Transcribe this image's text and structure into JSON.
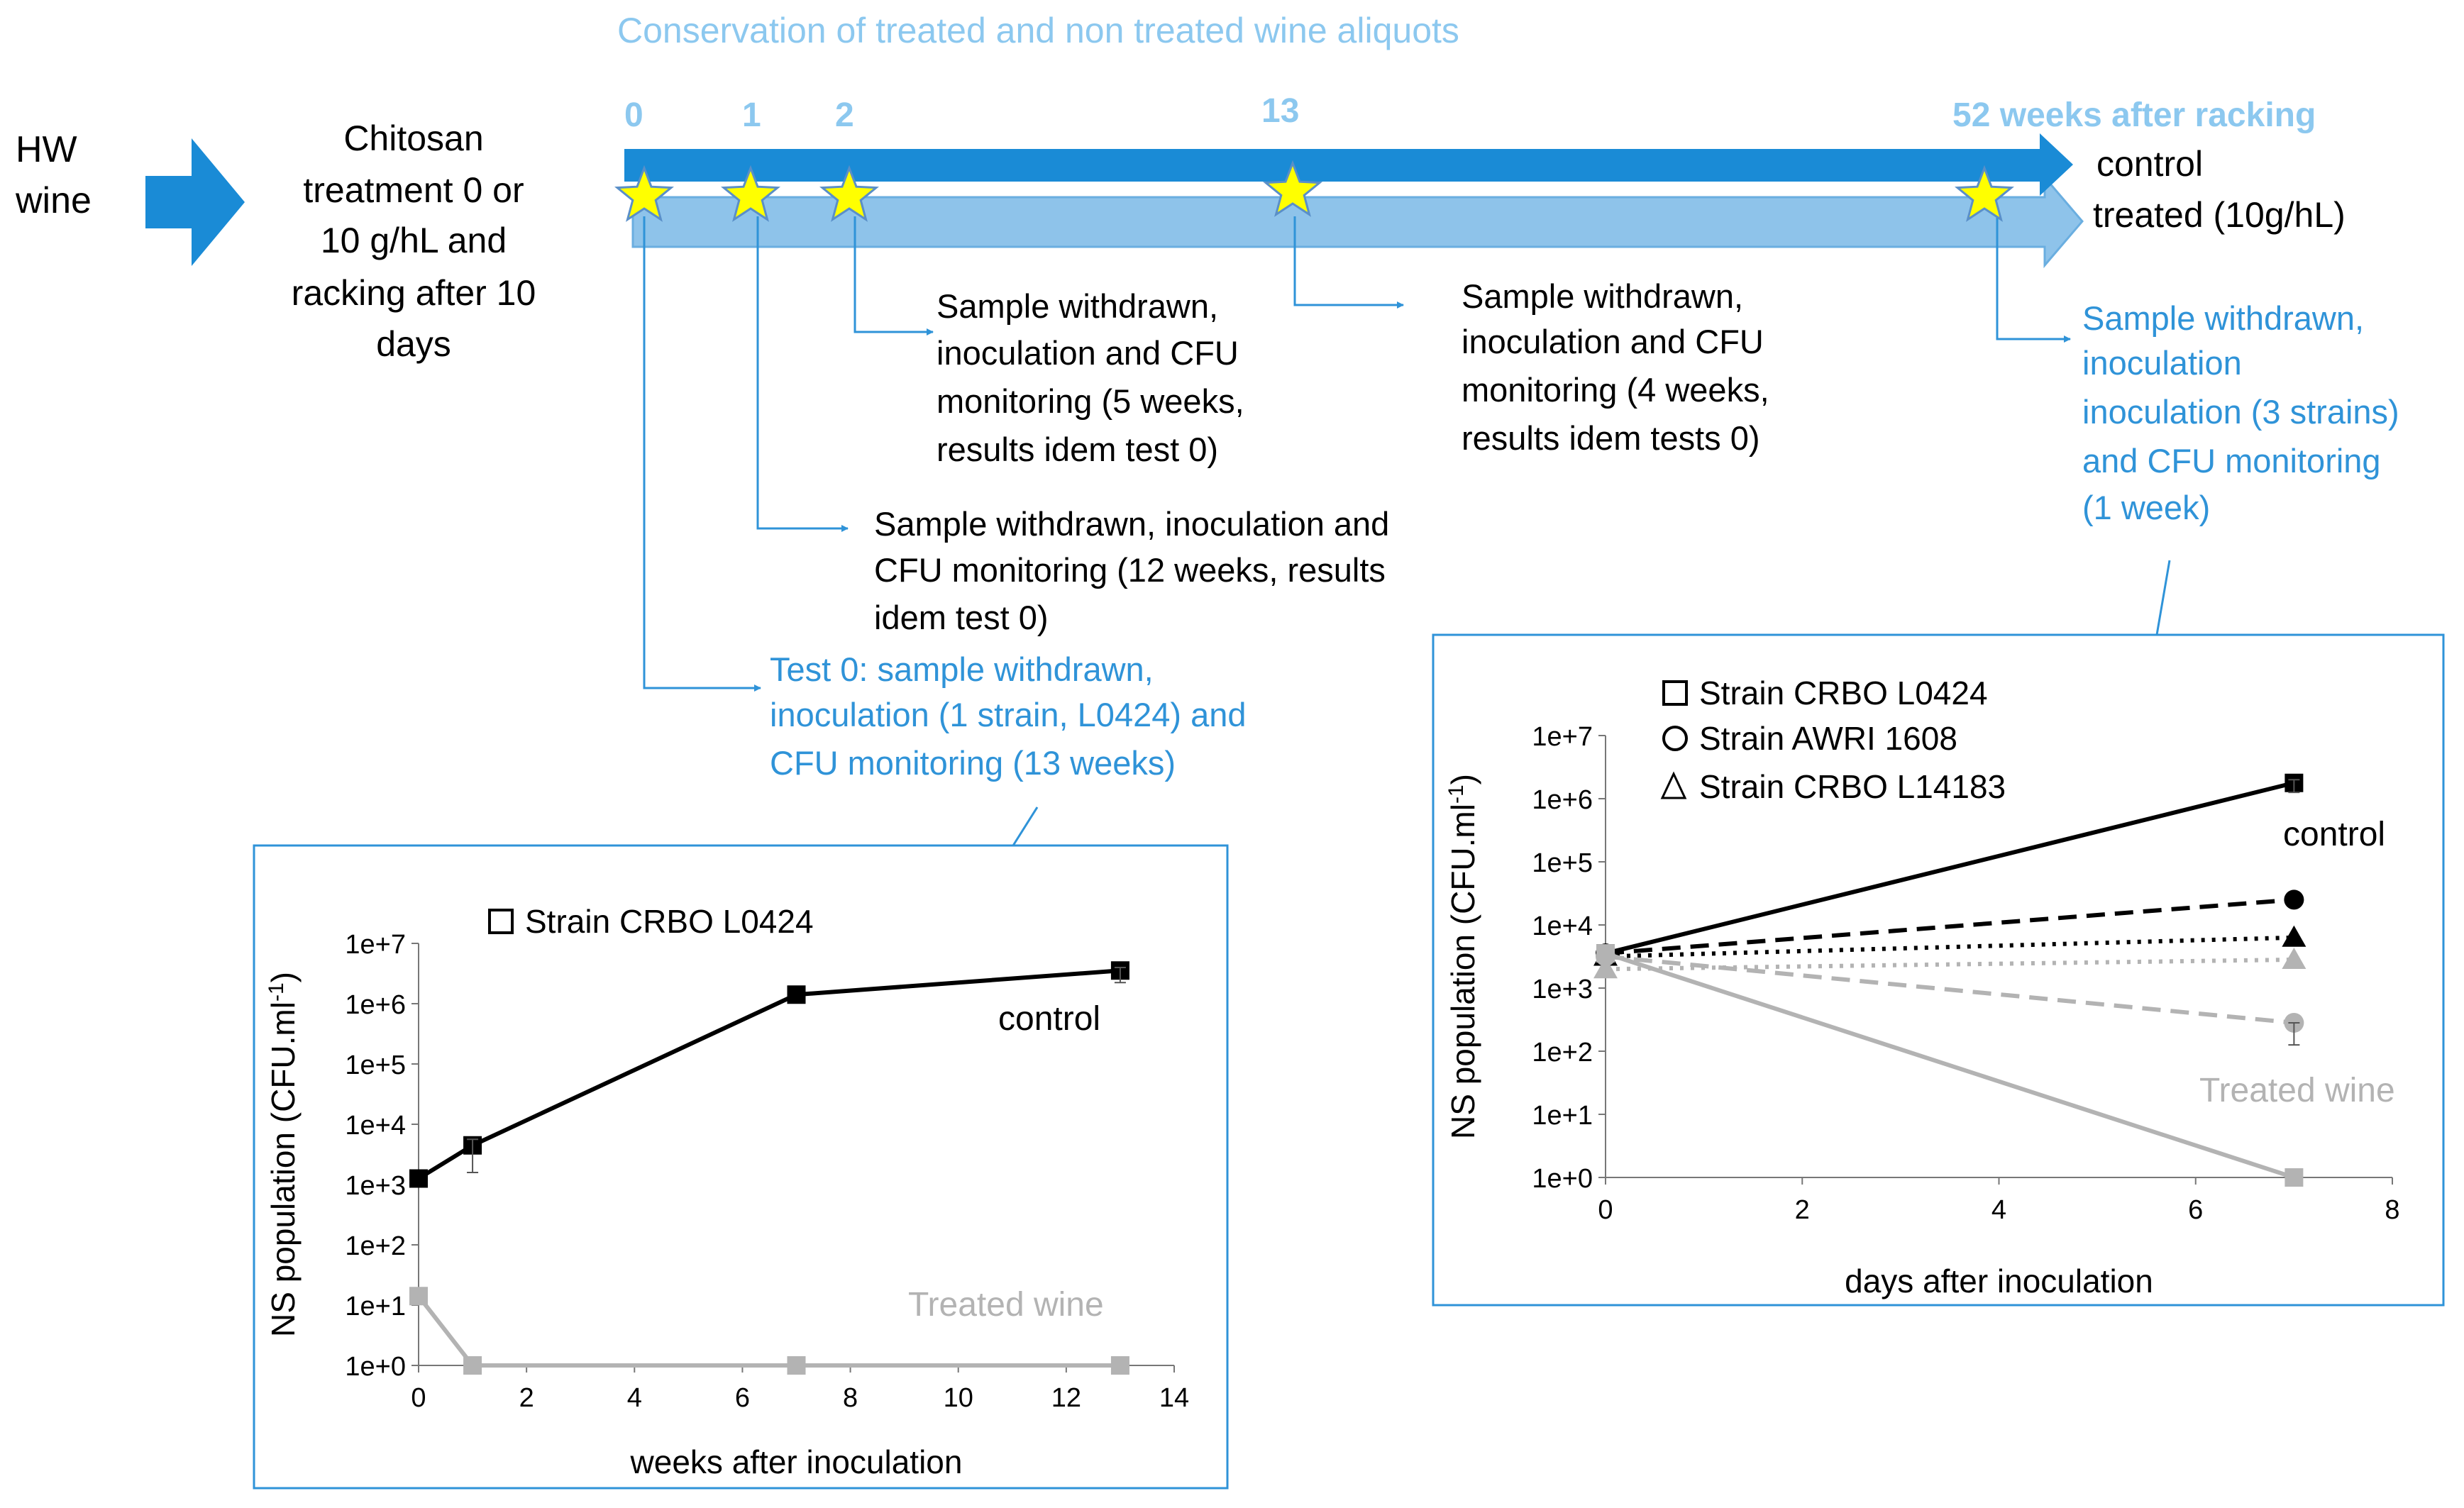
{
  "colors": {
    "dark_blue": "#1a8bd6",
    "light_blue": "#8ec3ea",
    "text_blue": "#2f93d8",
    "title_blue": "#8cc8ef",
    "star_fill": "#ffff00",
    "star_stroke": "#5a8fc8",
    "black": "#000000",
    "gray": "#b3b3b3",
    "frame": "#2f93d8"
  },
  "title": "Conservation of treated and non treated wine aliquots",
  "input": {
    "line1": "HW",
    "line2": "wine"
  },
  "treatment": {
    "lines": [
      "Chitosan",
      "treatment 0 or",
      "10 g/hL and",
      "racking after 10",
      "days"
    ]
  },
  "timeline": {
    "marks": [
      "0",
      "1",
      "2",
      "13",
      "52 weeks after racking"
    ],
    "control_label": "control",
    "treated_label": "treated (10g/hL)"
  },
  "events": {
    "week2": [
      "Sample withdrawn,",
      "inoculation and CFU",
      "monitoring (5 weeks,",
      "results idem test 0)"
    ],
    "week13": [
      "Sample withdrawn,",
      "inoculation and CFU",
      "monitoring (4 weeks,",
      "results idem tests 0)"
    ],
    "week52": [
      "Sample withdrawn,",
      "inoculation",
      "inoculation (3 strains)",
      "and CFU monitoring",
      "(1 week)"
    ],
    "week1": [
      "Sample withdrawn, inoculation and",
      "CFU monitoring (12 weeks, results",
      "idem test 0)"
    ],
    "week0": [
      "Test 0: sample withdrawn,",
      "inoculation (1 strain, L0424) and",
      "CFU monitoring (13 weeks)"
    ]
  },
  "chart_data": [
    {
      "type": "line",
      "xlabel": "weeks after inoculation",
      "ylabel": "NS population (CFU.ml",
      "ylabel_sup": "-1",
      "ylabel_close": ")",
      "xlim": [
        0,
        14
      ],
      "x_ticks": [
        "0",
        "2",
        "4",
        "6",
        "8",
        "10",
        "12",
        "14"
      ],
      "ylim_log10": [
        0,
        7
      ],
      "y_ticks": [
        "1e+0",
        "1e+1",
        "1e+2",
        "1e+3",
        "1e+4",
        "1e+5",
        "1e+6",
        "1e+7"
      ],
      "legend": [
        "Strain CRBO L0424"
      ],
      "annotations": {
        "control": "control",
        "treated": "Treated wine"
      },
      "series": [
        {
          "name": "control",
          "marker": "square",
          "dash": "solid",
          "color": "#000000",
          "x": [
            0,
            1,
            7,
            13
          ],
          "log10_y": [
            3.1,
            3.65,
            6.15,
            6.55
          ]
        },
        {
          "name": "Treated wine",
          "marker": "square",
          "dash": "solid",
          "color": "#b3b3b3",
          "x": [
            0,
            1,
            7,
            13
          ],
          "log10_y": [
            1.15,
            0,
            0,
            0
          ]
        }
      ]
    },
    {
      "type": "line",
      "xlabel": "days after inoculation",
      "ylabel": "NS population (CFU.ml",
      "ylabel_sup": "-1",
      "ylabel_close": ")",
      "xlim": [
        0,
        8
      ],
      "x_ticks": [
        "0",
        "2",
        "4",
        "6",
        "8"
      ],
      "ylim_log10": [
        0,
        7
      ],
      "y_ticks": [
        "1e+0",
        "1e+1",
        "1e+2",
        "1e+3",
        "1e+4",
        "1e+5",
        "1e+6",
        "1e+7"
      ],
      "legend": [
        "Strain CRBO L0424",
        "Strain AWRI 1608",
        "Strain CRBO L14183"
      ],
      "annotations": {
        "control": "control",
        "treated": "Treated wine"
      },
      "series": [
        {
          "name": "control CRBO L0424",
          "marker": "square",
          "dash": "solid",
          "color": "#000000",
          "x": [
            0,
            7
          ],
          "log10_y": [
            3.55,
            6.25
          ]
        },
        {
          "name": "control AWRI 1608",
          "marker": "circle",
          "dash": "dashed",
          "color": "#000000",
          "x": [
            0,
            7
          ],
          "log10_y": [
            3.55,
            4.4
          ]
        },
        {
          "name": "control CRBO L14183",
          "marker": "triangle",
          "dash": "dotted",
          "color": "#000000",
          "x": [
            0,
            7
          ],
          "log10_y": [
            3.5,
            3.8
          ]
        },
        {
          "name": "treated CRBO L0424",
          "marker": "square",
          "dash": "solid",
          "color": "#b3b3b3",
          "x": [
            0,
            7
          ],
          "log10_y": [
            3.55,
            0
          ]
        },
        {
          "name": "treated AWRI 1608",
          "marker": "circle",
          "dash": "dashed",
          "color": "#b3b3b3",
          "x": [
            0,
            7
          ],
          "log10_y": [
            3.5,
            2.45
          ]
        },
        {
          "name": "treated CRBO L14183",
          "marker": "triangle",
          "dash": "dotted",
          "color": "#b3b3b3",
          "x": [
            0,
            7
          ],
          "log10_y": [
            3.3,
            3.45
          ]
        }
      ]
    }
  ]
}
